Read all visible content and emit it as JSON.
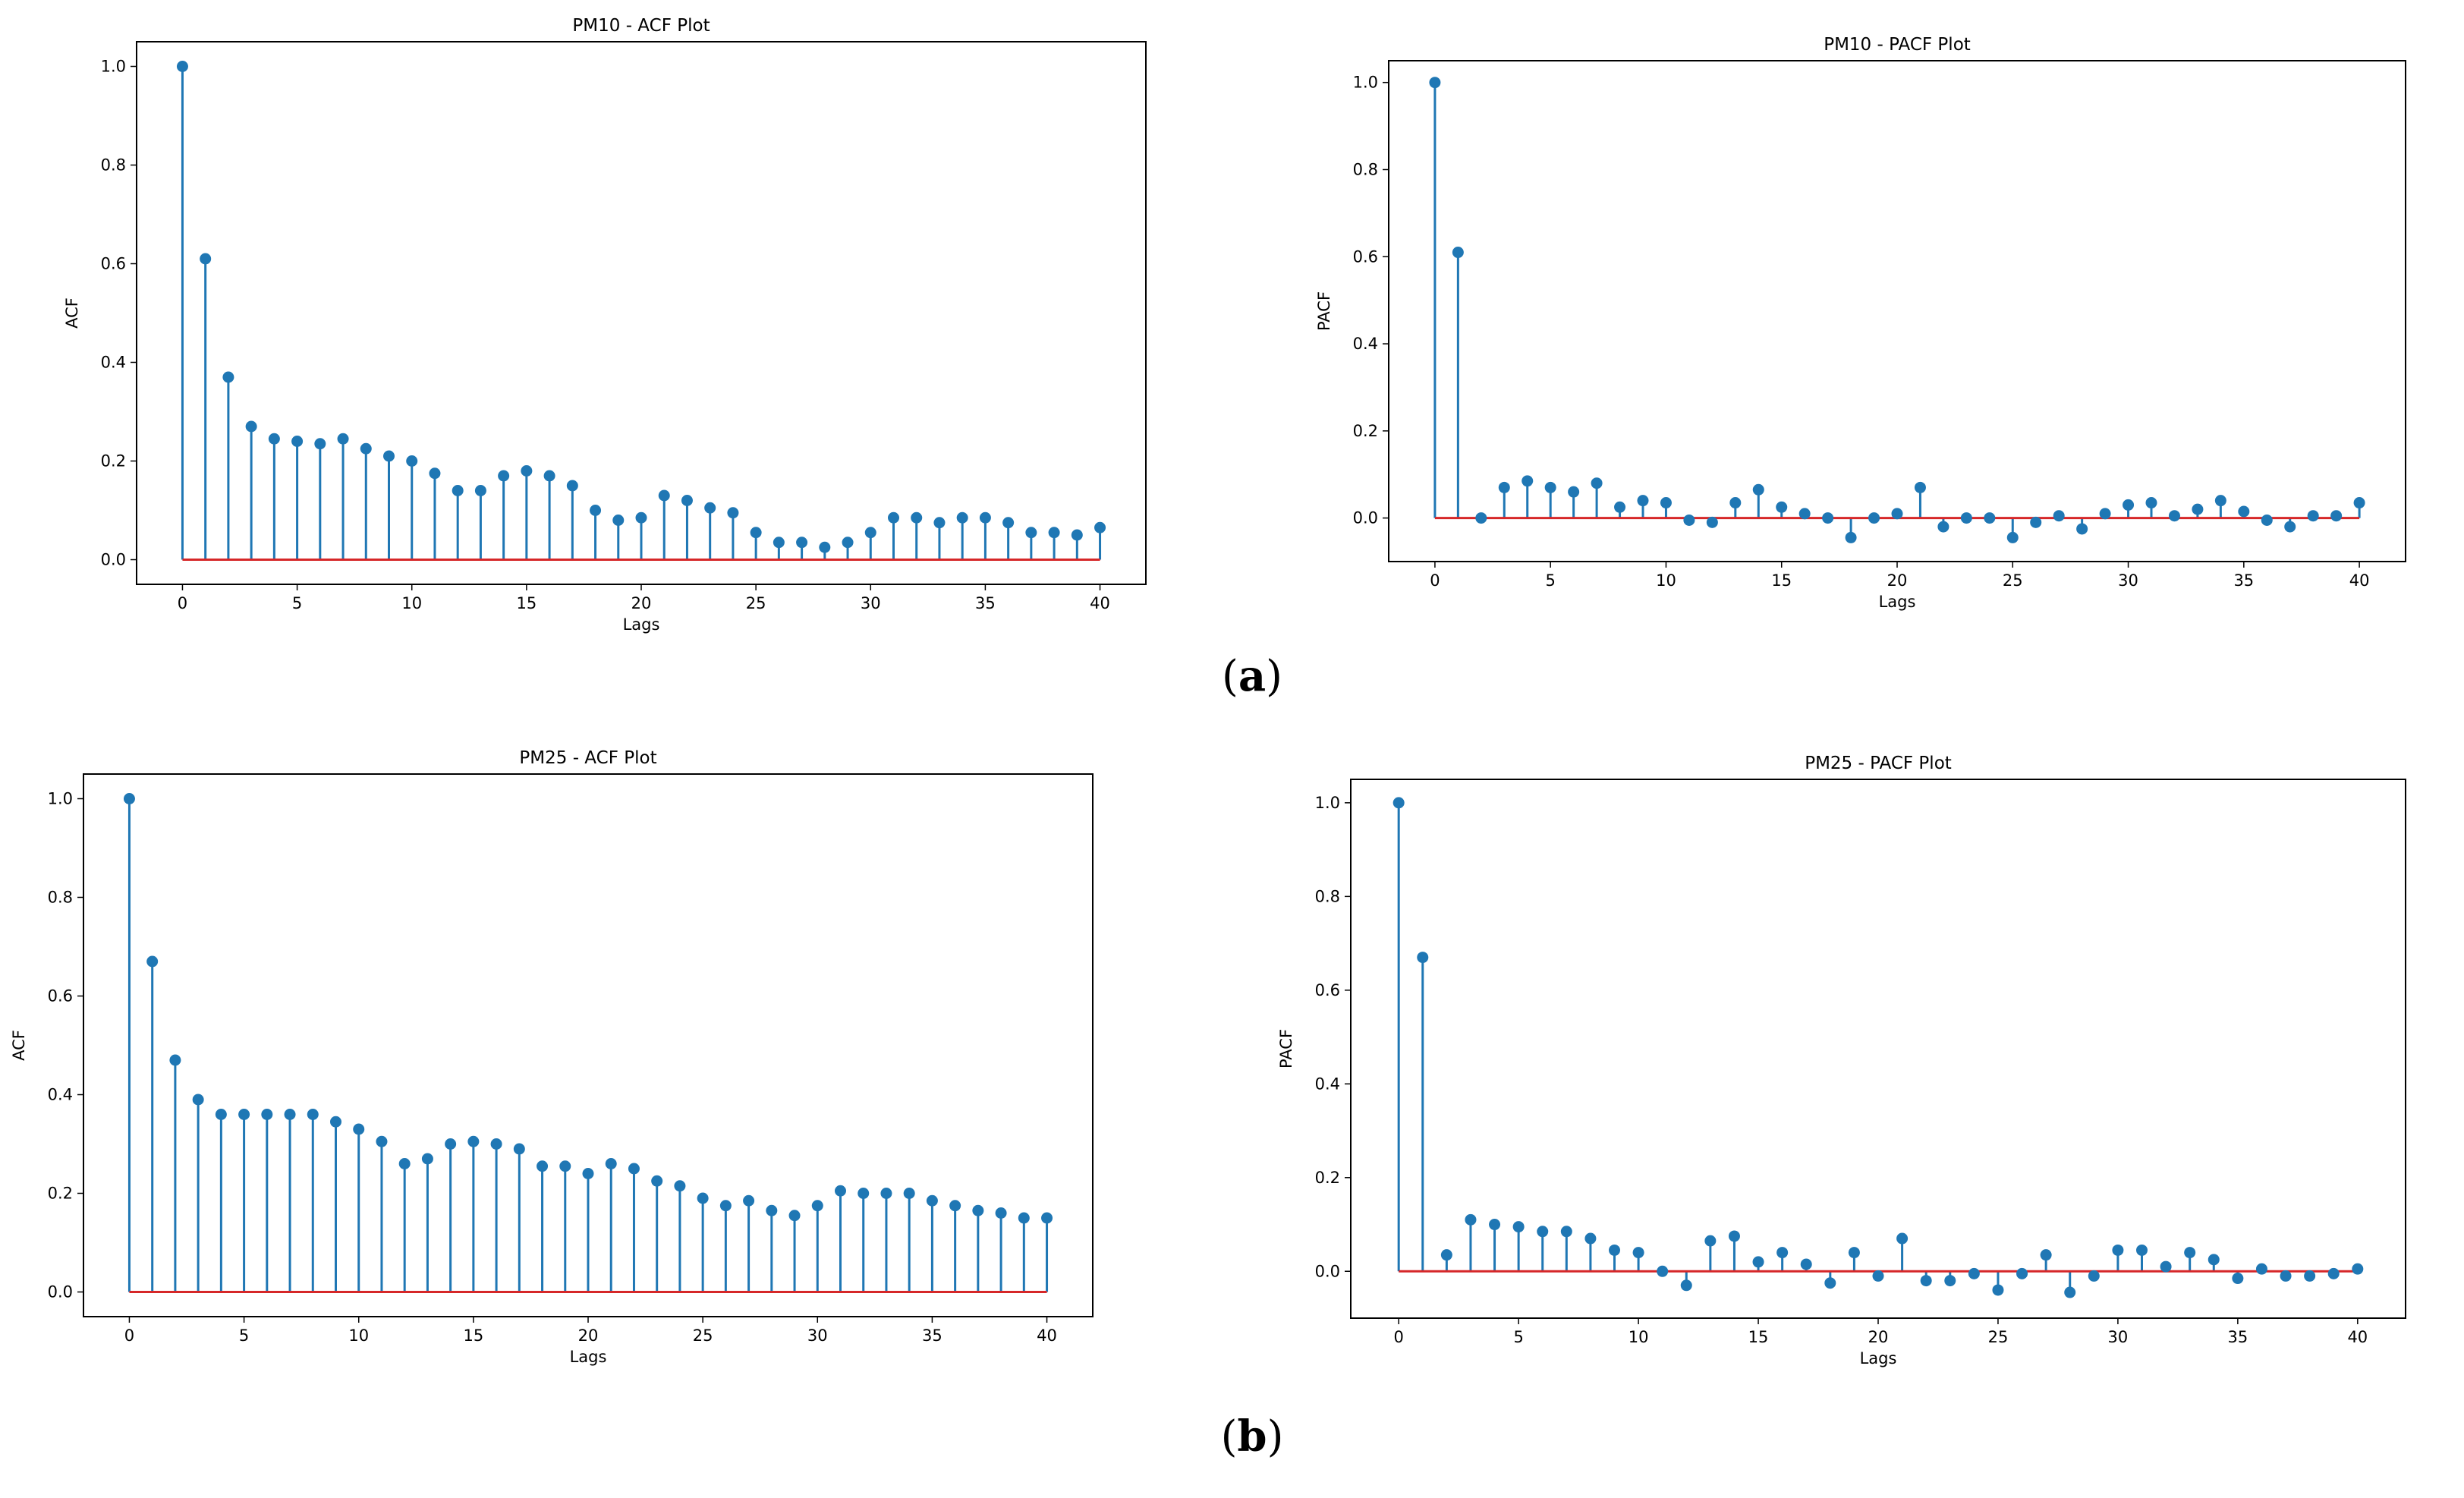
{
  "panel_labels": {
    "a_open": "(",
    "a_letter": "a",
    "a_close": ")",
    "b_open": "(",
    "b_letter": "b",
    "b_close": ")"
  },
  "colors": {
    "stem": "#1f77b4",
    "baseline": "#d62728",
    "axes": "#000000"
  },
  "chart_data": [
    {
      "id": "pm10-acf",
      "type": "stem",
      "title": "PM10 - ACF Plot",
      "xlabel": "Lags",
      "ylabel": "ACF",
      "xlim": [
        -2,
        42
      ],
      "ylim": [
        -0.05,
        1.05
      ],
      "xticks": [
        0,
        5,
        10,
        15,
        20,
        25,
        30,
        35,
        40
      ],
      "yticks": [
        0.0,
        0.2,
        0.4,
        0.6,
        0.8,
        1.0
      ],
      "x": [
        0,
        1,
        2,
        3,
        4,
        5,
        6,
        7,
        8,
        9,
        10,
        11,
        12,
        13,
        14,
        15,
        16,
        17,
        18,
        19,
        20,
        21,
        22,
        23,
        24,
        25,
        26,
        27,
        28,
        29,
        30,
        31,
        32,
        33,
        34,
        35,
        36,
        37,
        38,
        39,
        40
      ],
      "values": [
        1.0,
        0.61,
        0.37,
        0.27,
        0.245,
        0.24,
        0.235,
        0.245,
        0.225,
        0.21,
        0.2,
        0.175,
        0.14,
        0.14,
        0.17,
        0.18,
        0.17,
        0.15,
        0.1,
        0.08,
        0.085,
        0.13,
        0.12,
        0.105,
        0.095,
        0.055,
        0.035,
        0.035,
        0.025,
        0.035,
        0.055,
        0.085,
        0.085,
        0.075,
        0.085,
        0.085,
        0.075,
        0.055,
        0.055,
        0.05,
        0.065
      ]
    },
    {
      "id": "pm10-pacf",
      "type": "stem",
      "title": "PM10 - PACF Plot",
      "xlabel": "Lags",
      "ylabel": "PACF",
      "xlim": [
        -2,
        42
      ],
      "ylim": [
        -0.1,
        1.05
      ],
      "xticks": [
        0,
        5,
        10,
        15,
        20,
        25,
        30,
        35,
        40
      ],
      "yticks": [
        0.0,
        0.2,
        0.4,
        0.6,
        0.8,
        1.0
      ],
      "x": [
        0,
        1,
        2,
        3,
        4,
        5,
        6,
        7,
        8,
        9,
        10,
        11,
        12,
        13,
        14,
        15,
        16,
        17,
        18,
        19,
        20,
        21,
        22,
        23,
        24,
        25,
        26,
        27,
        28,
        29,
        30,
        31,
        32,
        33,
        34,
        35,
        36,
        37,
        38,
        39,
        40
      ],
      "values": [
        1.0,
        0.61,
        0.0,
        0.07,
        0.085,
        0.07,
        0.06,
        0.08,
        0.025,
        0.04,
        0.035,
        -0.005,
        -0.01,
        0.035,
        0.065,
        0.025,
        0.01,
        0.0,
        -0.045,
        0.0,
        0.01,
        0.07,
        -0.02,
        0.0,
        0.0,
        -0.045,
        -0.01,
        0.005,
        -0.025,
        0.01,
        0.03,
        0.035,
        0.005,
        0.02,
        0.04,
        0.015,
        -0.005,
        -0.02,
        0.005,
        0.005,
        0.035
      ]
    },
    {
      "id": "pm25-acf",
      "type": "stem",
      "title": "PM25 - ACF Plot",
      "xlabel": "Lags",
      "ylabel": "ACF",
      "xlim": [
        -2,
        42
      ],
      "ylim": [
        -0.05,
        1.05
      ],
      "xticks": [
        0,
        5,
        10,
        15,
        20,
        25,
        30,
        35,
        40
      ],
      "yticks": [
        0.0,
        0.2,
        0.4,
        0.6,
        0.8,
        1.0
      ],
      "x": [
        0,
        1,
        2,
        3,
        4,
        5,
        6,
        7,
        8,
        9,
        10,
        11,
        12,
        13,
        14,
        15,
        16,
        17,
        18,
        19,
        20,
        21,
        22,
        23,
        24,
        25,
        26,
        27,
        28,
        29,
        30,
        31,
        32,
        33,
        34,
        35,
        36,
        37,
        38,
        39,
        40
      ],
      "values": [
        1.0,
        0.67,
        0.47,
        0.39,
        0.36,
        0.36,
        0.36,
        0.36,
        0.36,
        0.345,
        0.33,
        0.305,
        0.26,
        0.27,
        0.3,
        0.305,
        0.3,
        0.29,
        0.255,
        0.255,
        0.24,
        0.26,
        0.25,
        0.225,
        0.215,
        0.19,
        0.175,
        0.185,
        0.165,
        0.155,
        0.175,
        0.205,
        0.2,
        0.2,
        0.2,
        0.185,
        0.175,
        0.165,
        0.16,
        0.15,
        0.15
      ]
    },
    {
      "id": "pm25-pacf",
      "type": "stem",
      "title": "PM25 - PACF Plot",
      "xlabel": "Lags",
      "ylabel": "PACF",
      "xlim": [
        -2,
        42
      ],
      "ylim": [
        -0.1,
        1.05
      ],
      "xticks": [
        0,
        5,
        10,
        15,
        20,
        25,
        30,
        35,
        40
      ],
      "yticks": [
        0.0,
        0.2,
        0.4,
        0.6,
        0.8,
        1.0
      ],
      "x": [
        0,
        1,
        2,
        3,
        4,
        5,
        6,
        7,
        8,
        9,
        10,
        11,
        12,
        13,
        14,
        15,
        16,
        17,
        18,
        19,
        20,
        21,
        22,
        23,
        24,
        25,
        26,
        27,
        28,
        29,
        30,
        31,
        32,
        33,
        34,
        35,
        36,
        37,
        38,
        39,
        40
      ],
      "values": [
        1.0,
        0.67,
        0.035,
        0.11,
        0.1,
        0.095,
        0.085,
        0.085,
        0.07,
        0.045,
        0.04,
        0.0,
        -0.03,
        0.065,
        0.075,
        0.02,
        0.04,
        0.015,
        -0.025,
        0.04,
        -0.01,
        0.07,
        -0.02,
        -0.02,
        -0.005,
        -0.04,
        -0.005,
        0.035,
        -0.045,
        -0.01,
        0.045,
        0.045,
        0.01,
        0.04,
        0.025,
        -0.015,
        0.005,
        -0.01,
        -0.01,
        -0.005,
        0.005
      ]
    }
  ]
}
